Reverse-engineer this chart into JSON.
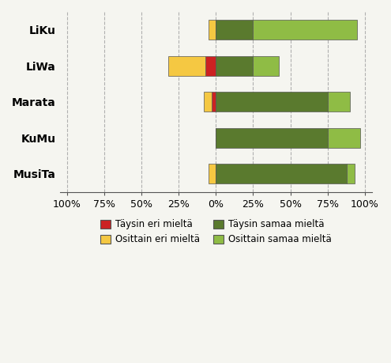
{
  "categories": [
    "LiKu",
    "LiWa",
    "Marata",
    "KuMu",
    "MusiTa"
  ],
  "series": {
    "Täysin eri mieltä": [
      0,
      -7,
      -3,
      0,
      0
    ],
    "Osittain eri mieltä": [
      -5,
      -25,
      -5,
      0,
      -5
    ],
    "Täysin samaa mieltä": [
      25,
      25,
      75,
      75,
      88
    ],
    "Osittain samaa mieltä": [
      70,
      17,
      15,
      22,
      5
    ]
  },
  "colors": {
    "Täysin eri mieltä": "#cc2222",
    "Osittain eri mieltä": "#f5c842",
    "Täysin samaa mieltä": "#5a7a2e",
    "Osittain samaa mieltä": "#8fbc45"
  },
  "xlim": [
    -105,
    105
  ],
  "xticks": [
    -100,
    -75,
    -50,
    -25,
    0,
    25,
    50,
    75,
    100
  ],
  "xticklabels": [
    "100%",
    "75%",
    "50%",
    "25%",
    "0%",
    "25%",
    "50%",
    "75%",
    "100%"
  ],
  "bar_height": 0.55,
  "background_color": "#f5f5f0",
  "legend_order": [
    "Täysin eri mieltä",
    "Osittain eri mieltä",
    "Täysin samaa mieltä",
    "Osittain samaa mieltä"
  ],
  "grid_color": "#b0b0b0"
}
